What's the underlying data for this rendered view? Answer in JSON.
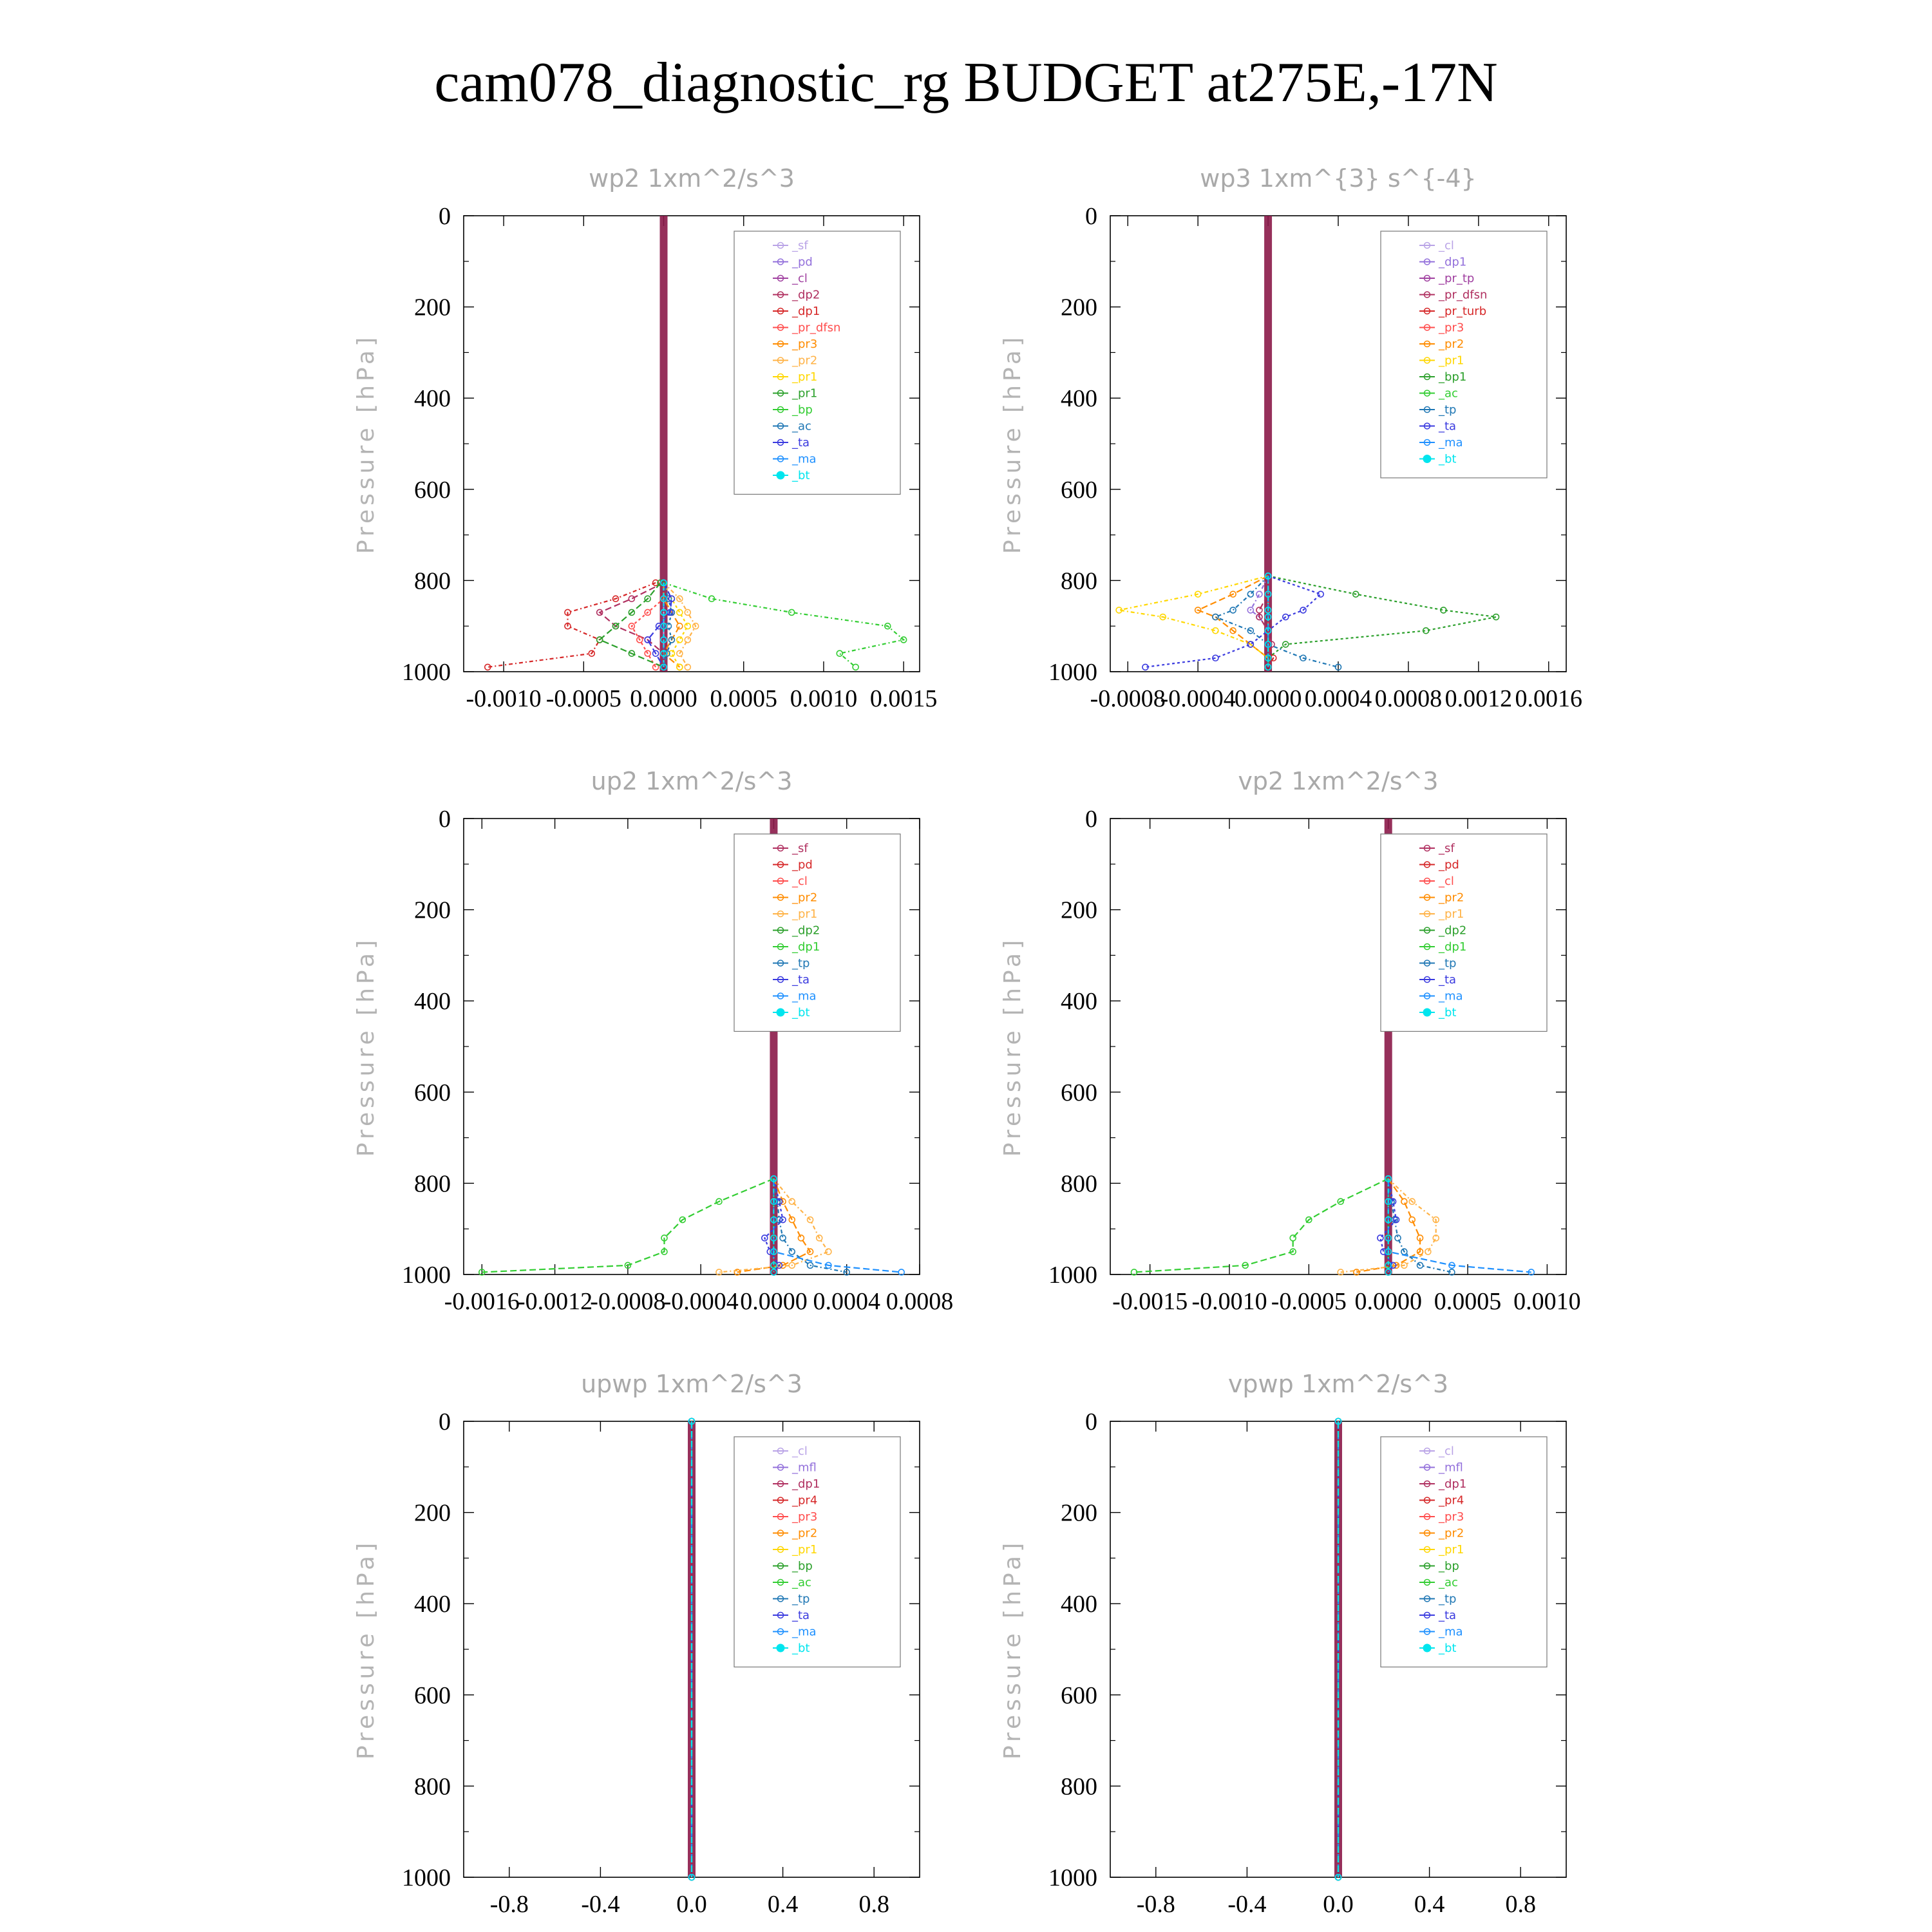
{
  "title": "cam078_diagnostic_rg  BUDGET at275E,-17N",
  "colors": {
    "background": "#ffffff",
    "axis": "#000000",
    "panel_title": "#a9a9a9",
    "axis_label": "#b4b4b4"
  },
  "chart_data": [
    {
      "type": "line",
      "title": "wp2   1xm^2/s^3",
      "ylabel": "Pressure [hPa]",
      "ylim": [
        1000,
        0
      ],
      "xlim": [
        -0.00125,
        0.0016
      ],
      "xticks": [
        "-0.0010",
        "-0.0005",
        "0.0000",
        "0.0005",
        "0.0010",
        "0.0015"
      ],
      "yticks": [
        "0",
        "200",
        "400",
        "600",
        "800",
        "1000"
      ],
      "legend_position": "top-right",
      "y": [
        805,
        840,
        870,
        900,
        930,
        960,
        990
      ],
      "series": [
        {
          "name": "_sf",
          "color": "#b9a3e6",
          "values": [
            0,
            0,
            0,
            0,
            0,
            0,
            0
          ]
        },
        {
          "name": "_pd",
          "color": "#9370db",
          "values": [
            0,
            0,
            0,
            0,
            0,
            0,
            0
          ]
        },
        {
          "name": "_cl",
          "color": "#a040a0",
          "values": [
            0,
            0,
            0,
            0,
            0,
            0,
            0
          ]
        },
        {
          "name": "_dp2",
          "color": "#b03060",
          "values": [
            0,
            -0.0002,
            -0.0004,
            -0.0003,
            -0.0001,
            0,
            0
          ]
        },
        {
          "name": "_dp1",
          "color": "#d62728",
          "values": [
            -5e-05,
            -0.0003,
            -0.0006,
            -0.0006,
            -0.0004,
            -0.00045,
            -0.0011
          ]
        },
        {
          "name": "_pr_dfsn",
          "color": "#ff4d4d",
          "values": [
            0,
            0,
            -0.0001,
            -0.0002,
            -0.00015,
            -0.0001,
            -5e-05
          ]
        },
        {
          "name": "_pr3",
          "color": "#ff8c00",
          "values": [
            0,
            0,
            5e-05,
            0.0001,
            5e-05,
            0,
            0.0001
          ]
        },
        {
          "name": "_pr2",
          "color": "#ffb347",
          "values": [
            0,
            0.0001,
            0.00015,
            0.0002,
            0.00015,
            0.0001,
            0.00015
          ]
        },
        {
          "name": "_pr1",
          "color": "#ffd700",
          "values": [
            0,
            5e-05,
            0.0001,
            0.00015,
            0.0001,
            5e-05,
            0.0001
          ]
        },
        {
          "name": "_pr1",
          "color": "#2ca02c",
          "values": [
            -2e-05,
            -0.0001,
            -0.0002,
            -0.0003,
            -0.0004,
            -0.0002,
            0
          ]
        },
        {
          "name": "_bp",
          "color": "#32cd32",
          "values": [
            0,
            0.0003,
            0.0008,
            0.0014,
            0.0015,
            0.0011,
            0.0012
          ]
        },
        {
          "name": "_ac",
          "color": "#1f77b4",
          "values": [
            0,
            3e-05,
            5e-05,
            3e-05,
            5e-05,
            2e-05,
            0
          ]
        },
        {
          "name": "_ta",
          "color": "#3a3adf",
          "values": [
            0,
            5e-05,
            4e-05,
            -3e-05,
            -0.0001,
            -5e-05,
            0
          ]
        },
        {
          "name": "_ma",
          "color": "#1e90ff",
          "values": [
            0,
            0,
            0,
            0,
            0,
            0,
            0
          ]
        },
        {
          "name": "_bt",
          "color": "#00e5ee",
          "values": [
            0,
            0,
            0,
            0,
            0,
            0,
            0
          ]
        }
      ]
    },
    {
      "type": "line",
      "title": "wp3   1xm^{3} s^{-4}",
      "ylabel": "Pressure [hPa]",
      "ylim": [
        1000,
        0
      ],
      "xlim": [
        -0.0009,
        0.0017
      ],
      "xticks": [
        "-0.0008",
        "-0.0004",
        "0.0000",
        "0.0004",
        "0.0008",
        "0.0012",
        "0.0016"
      ],
      "yticks": [
        "0",
        "200",
        "400",
        "600",
        "800",
        "1000"
      ],
      "legend_position": "top-right",
      "y": [
        790,
        830,
        865,
        880,
        910,
        940,
        970,
        990
      ],
      "series": [
        {
          "name": "_cl",
          "color": "#b9a3e6",
          "values": [
            0,
            0,
            0,
            0,
            0,
            0,
            0,
            0
          ]
        },
        {
          "name": "_dp1",
          "color": "#9370db",
          "values": [
            0,
            -5e-05,
            -0.0001,
            -5e-05,
            0,
            0,
            0,
            0
          ]
        },
        {
          "name": "_pr_tp",
          "color": "#a040a0",
          "values": [
            0,
            0,
            0,
            0,
            0,
            0,
            0,
            0
          ]
        },
        {
          "name": "_pr_dfsn",
          "color": "#b03060",
          "values": [
            0,
            0,
            -5e-05,
            -5e-05,
            0,
            2e-05,
            0,
            0
          ]
        },
        {
          "name": "_pr_turb",
          "color": "#d62728",
          "values": [
            0,
            0,
            0,
            0,
            0,
            0,
            3e-05,
            0
          ]
        },
        {
          "name": "_pr3",
          "color": "#ff4d4d",
          "values": [
            0,
            0,
            0,
            0,
            0,
            0,
            0,
            0
          ]
        },
        {
          "name": "_pr2",
          "color": "#ff8c00",
          "values": [
            0,
            -0.0002,
            -0.0004,
            -0.0003,
            -0.0002,
            -0.0001,
            0,
            0
          ]
        },
        {
          "name": "_pr1",
          "color": "#ffd700",
          "values": [
            0,
            -0.0004,
            -0.00085,
            -0.0006,
            -0.0003,
            -0.0001,
            0,
            0
          ]
        },
        {
          "name": "_bp1",
          "color": "#2ca02c",
          "values": [
            0,
            0.0005,
            0.001,
            0.0013,
            0.0009,
            0.0001,
            0,
            0
          ]
        },
        {
          "name": "_ac",
          "color": "#32cd32",
          "values": [
            0,
            0,
            0,
            0,
            0,
            0,
            0,
            0
          ]
        },
        {
          "name": "_tp",
          "color": "#1f77b4",
          "values": [
            0,
            -0.0001,
            -0.0002,
            -0.0003,
            -0.0001,
            0,
            0.0002,
            0.0004
          ]
        },
        {
          "name": "_ta",
          "color": "#3a3adf",
          "values": [
            0,
            0.0003,
            0.0002,
            0.0001,
            0,
            -0.0001,
            -0.0003,
            -0.0007
          ]
        },
        {
          "name": "_ma",
          "color": "#1e90ff",
          "values": [
            0,
            0,
            0,
            0,
            0,
            0,
            0,
            0
          ]
        },
        {
          "name": "_bt",
          "color": "#00e5ee",
          "values": [
            0,
            0,
            0,
            0,
            0,
            0,
            0,
            0
          ]
        }
      ]
    },
    {
      "type": "line",
      "title": "up2   1xm^2/s^3",
      "ylabel": "Pressure [hPa]",
      "ylim": [
        1000,
        0
      ],
      "xlim": [
        -0.0017,
        0.0008
      ],
      "xticks": [
        "-0.0016",
        "-0.0012",
        "-0.0008",
        "-0.0004",
        "0.0000",
        "0.0004",
        "0.0008"
      ],
      "yticks": [
        "0",
        "200",
        "400",
        "600",
        "800",
        "1000"
      ],
      "legend_position": "top-right",
      "y": [
        790,
        840,
        880,
        920,
        950,
        980,
        995
      ],
      "series": [
        {
          "name": "_sf",
          "color": "#b03060",
          "values": [
            0,
            0,
            0,
            0,
            0,
            0,
            0
          ]
        },
        {
          "name": "_pd",
          "color": "#d62728",
          "values": [
            0,
            0,
            0,
            0,
            0,
            0,
            0
          ]
        },
        {
          "name": "_cl",
          "color": "#ff4d4d",
          "values": [
            0,
            0,
            0,
            0,
            0,
            0,
            0
          ]
        },
        {
          "name": "_pr2",
          "color": "#ff8c00",
          "values": [
            0,
            5e-05,
            0.0001,
            0.00015,
            0.0002,
            5e-05,
            -0.0002
          ]
        },
        {
          "name": "_pr1",
          "color": "#ffb347",
          "values": [
            0,
            0.0001,
            0.0002,
            0.00025,
            0.0003,
            0.0001,
            -0.0003
          ]
        },
        {
          "name": "_dp2",
          "color": "#2ca02c",
          "values": [
            0,
            0,
            0,
            0,
            0,
            0,
            0
          ]
        },
        {
          "name": "_dp1",
          "color": "#32cd32",
          "values": [
            0,
            -0.0003,
            -0.0005,
            -0.0006,
            -0.0006,
            -0.0008,
            -0.0016
          ]
        },
        {
          "name": "_tp",
          "color": "#1f77b4",
          "values": [
            0,
            2e-05,
            3e-05,
            5e-05,
            0.0001,
            0.0002,
            0.0004
          ]
        },
        {
          "name": "_ta",
          "color": "#3a3adf",
          "values": [
            0,
            3e-05,
            5e-05,
            -5e-05,
            -2e-05,
            3e-05,
            0
          ]
        },
        {
          "name": "_ma",
          "color": "#1e90ff",
          "values": [
            0,
            0,
            0,
            0,
            0,
            0.0003,
            0.0007
          ]
        },
        {
          "name": "_bt",
          "color": "#00e5ee",
          "values": [
            0,
            0,
            0,
            0,
            0,
            0,
            0
          ]
        }
      ]
    },
    {
      "type": "line",
      "title": "vp2   1xm^2/s^3",
      "ylabel": "Pressure [hPa]",
      "ylim": [
        1000,
        0
      ],
      "xlim": [
        -0.00175,
        0.00112
      ],
      "xticks": [
        "-0.0015",
        "-0.0010",
        "-0.0005",
        "0.0000",
        "0.0005",
        "0.0010"
      ],
      "yticks": [
        "0",
        "200",
        "400",
        "600",
        "800",
        "1000"
      ],
      "legend_position": "top-right",
      "y": [
        790,
        840,
        880,
        920,
        950,
        980,
        995
      ],
      "series": [
        {
          "name": "_sf",
          "color": "#b03060",
          "values": [
            0,
            0,
            0,
            0,
            0,
            0,
            0
          ]
        },
        {
          "name": "_pd",
          "color": "#d62728",
          "values": [
            0,
            0,
            0,
            0,
            0,
            0,
            0
          ]
        },
        {
          "name": "_cl",
          "color": "#ff4d4d",
          "values": [
            0,
            0,
            0,
            0,
            0,
            0,
            0
          ]
        },
        {
          "name": "_pr2",
          "color": "#ff8c00",
          "values": [
            0,
            0.0001,
            0.00015,
            0.0002,
            0.0002,
            5e-05,
            -0.0002
          ]
        },
        {
          "name": "_pr1",
          "color": "#ffb347",
          "values": [
            0,
            0.00015,
            0.0003,
            0.0003,
            0.00025,
            0.0001,
            -0.0003
          ]
        },
        {
          "name": "_dp2",
          "color": "#2ca02c",
          "values": [
            0,
            0,
            0,
            0,
            0,
            0,
            0
          ]
        },
        {
          "name": "_dp1",
          "color": "#32cd32",
          "values": [
            0,
            -0.0003,
            -0.0005,
            -0.0006,
            -0.0006,
            -0.0009,
            -0.0016
          ]
        },
        {
          "name": "_tp",
          "color": "#1f77b4",
          "values": [
            0,
            2e-05,
            4e-05,
            6e-05,
            0.0001,
            0.0002,
            0.0004
          ]
        },
        {
          "name": "_ta",
          "color": "#3a3adf",
          "values": [
            0,
            3e-05,
            5e-05,
            -5e-05,
            -3e-05,
            3e-05,
            0
          ]
        },
        {
          "name": "_ma",
          "color": "#1e90ff",
          "values": [
            0,
            0,
            0,
            0,
            0,
            0.0004,
            0.0009
          ]
        },
        {
          "name": "_bt",
          "color": "#00e5ee",
          "values": [
            0,
            0,
            0,
            0,
            0,
            0,
            0
          ]
        }
      ]
    },
    {
      "type": "line",
      "title": "upwp   1xm^2/s^3",
      "ylabel": "Pressure [hPa]",
      "ylim": [
        1000,
        0
      ],
      "xlim": [
        -1,
        1
      ],
      "xticks": [
        "-0.8",
        "-0.4",
        "0.0",
        "0.4",
        "0.8"
      ],
      "yticks": [
        "0",
        "200",
        "400",
        "600",
        "800",
        "1000"
      ],
      "legend_position": "top-right",
      "y": [
        0,
        1000
      ],
      "series": [
        {
          "name": "_cl",
          "color": "#b9a3e6",
          "values": [
            0,
            0
          ]
        },
        {
          "name": "_mfl",
          "color": "#9370db",
          "values": [
            0,
            0
          ]
        },
        {
          "name": "_dp1",
          "color": "#b03060",
          "values": [
            0,
            0
          ]
        },
        {
          "name": "_pr4",
          "color": "#d62728",
          "values": [
            0,
            0
          ]
        },
        {
          "name": "_pr3",
          "color": "#ff4d4d",
          "values": [
            0,
            0
          ]
        },
        {
          "name": "_pr2",
          "color": "#ff8c00",
          "values": [
            0,
            0
          ]
        },
        {
          "name": "_pr1",
          "color": "#ffd700",
          "values": [
            0,
            0
          ]
        },
        {
          "name": "_bp",
          "color": "#2ca02c",
          "values": [
            0,
            0
          ]
        },
        {
          "name": "_ac",
          "color": "#32cd32",
          "values": [
            0,
            0
          ]
        },
        {
          "name": "_tp",
          "color": "#1f77b4",
          "values": [
            0,
            0
          ]
        },
        {
          "name": "_ta",
          "color": "#3a3adf",
          "values": [
            0,
            0
          ]
        },
        {
          "name": "_ma",
          "color": "#1e90ff",
          "values": [
            0,
            0
          ]
        },
        {
          "name": "_bt",
          "color": "#00e5ee",
          "values": [
            0,
            0
          ]
        }
      ]
    },
    {
      "type": "line",
      "title": "vpwp   1xm^2/s^3",
      "ylabel": "Pressure [hPa]",
      "ylim": [
        1000,
        0
      ],
      "xlim": [
        -1,
        1
      ],
      "xticks": [
        "-0.8",
        "-0.4",
        "0.0",
        "0.4",
        "0.8"
      ],
      "yticks": [
        "0",
        "200",
        "400",
        "600",
        "800",
        "1000"
      ],
      "legend_position": "top-right",
      "y": [
        0,
        1000
      ],
      "series": [
        {
          "name": "_cl",
          "color": "#b9a3e6",
          "values": [
            0,
            0
          ]
        },
        {
          "name": "_mfl",
          "color": "#9370db",
          "values": [
            0,
            0
          ]
        },
        {
          "name": "_dp1",
          "color": "#b03060",
          "values": [
            0,
            0
          ]
        },
        {
          "name": "_pr4",
          "color": "#d62728",
          "values": [
            0,
            0
          ]
        },
        {
          "name": "_pr3",
          "color": "#ff4d4d",
          "values": [
            0,
            0
          ]
        },
        {
          "name": "_pr2",
          "color": "#ff8c00",
          "values": [
            0,
            0
          ]
        },
        {
          "name": "_pr1",
          "color": "#ffd700",
          "values": [
            0,
            0
          ]
        },
        {
          "name": "_bp",
          "color": "#2ca02c",
          "values": [
            0,
            0
          ]
        },
        {
          "name": "_ac",
          "color": "#32cd32",
          "values": [
            0,
            0
          ]
        },
        {
          "name": "_tp",
          "color": "#1f77b4",
          "values": [
            0,
            0
          ]
        },
        {
          "name": "_ta",
          "color": "#3a3adf",
          "values": [
            0,
            0
          ]
        },
        {
          "name": "_ma",
          "color": "#1e90ff",
          "values": [
            0,
            0
          ]
        },
        {
          "name": "_bt",
          "color": "#00e5ee",
          "values": [
            0,
            0
          ]
        }
      ]
    }
  ]
}
